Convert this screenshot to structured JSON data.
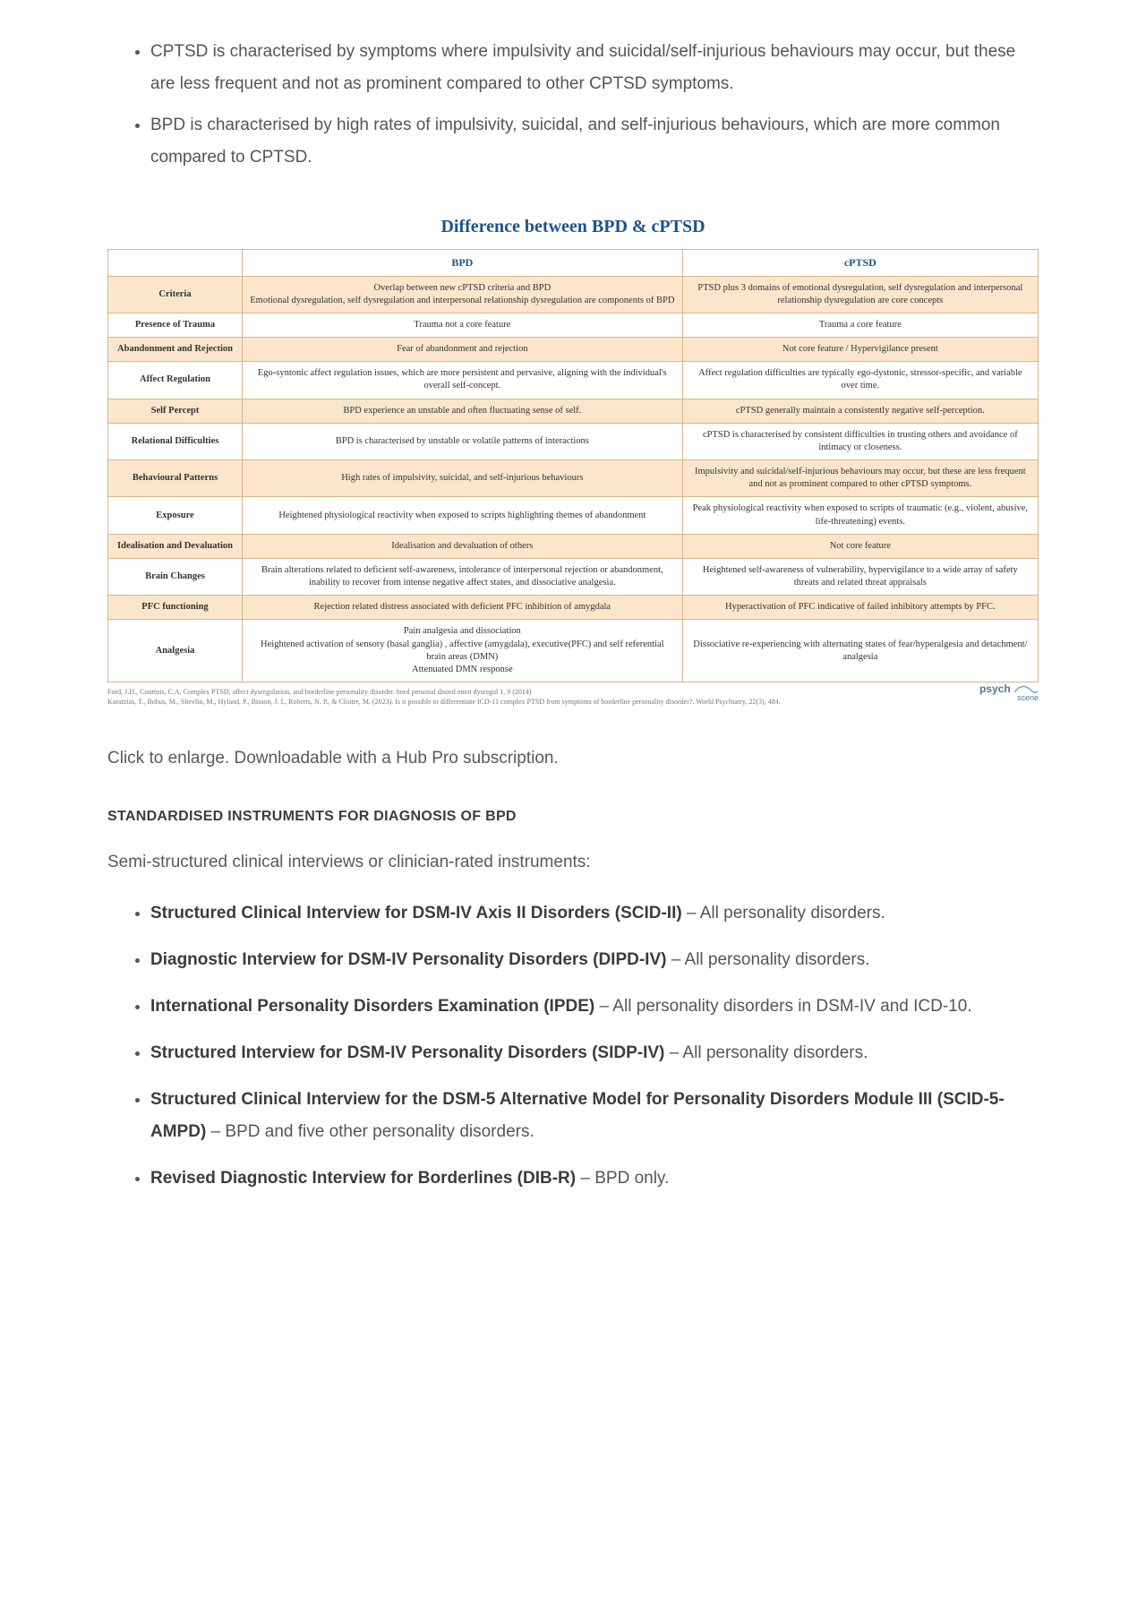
{
  "colors": {
    "accent_blue": "#1a5490",
    "table_border": "#d9b58a",
    "shade_bg": "#fbe6cc",
    "body_text": "#3c3c3c",
    "muted_text": "#595959"
  },
  "top_bullets": [
    "CPTSD is characterised by symptoms where impulsivity and suicidal/self-injurious behaviours may occur, but these are less frequent and not as prominent compared to other CPTSD symptoms.",
    "BPD is characterised by high rates of impulsivity, suicidal, and self-injurious behaviours, which are more common compared to CPTSD."
  ],
  "table": {
    "title": "Difference between BPD & cPTSD",
    "col_headers": [
      "BPD",
      "cPTSD"
    ],
    "rows": [
      {
        "label": "Criteria",
        "shade": true,
        "bpd": "Overlap between new cPTSD criteria and BPD\nEmotional dysregulation, self dysregulation and interpersonal relationship dysregulation are components of BPD",
        "cptsd": "PTSD plus 3 domains of emotional dysregulation, self dysregulation and interpersonal relationship dysregulation are core concepts"
      },
      {
        "label": "Presence of Trauma",
        "shade": false,
        "bpd": "Trauma not a core feature",
        "cptsd": "Trauma a core feature"
      },
      {
        "label": "Abandonment and Rejection",
        "shade": true,
        "bpd": "Fear of abandonment and rejection",
        "cptsd": "Not core feature / Hypervigilance present"
      },
      {
        "label": "Affect Regulation",
        "shade": false,
        "bpd": "Ego-syntonic affect regulation issues, which are more persistent and pervasive, aligning with the individual's overall self-concept.",
        "cptsd": "Affect regulation difficulties are typically ego-dystonic, stressor-specific, and variable over time."
      },
      {
        "label": "Self Percept",
        "shade": true,
        "bpd": "BPD experience an unstable and often fluctuating sense of self.",
        "cptsd": "cPTSD generally maintain a consistently negative self-perception."
      },
      {
        "label": "Relational Difficulties",
        "shade": false,
        "bpd": "BPD is characterised by unstable or volatile patterns of interactions",
        "cptsd": "cPTSD is characterised by consistent difficulties in trusting others and avoidance of intimacy or closeness."
      },
      {
        "label": "Behavioural Patterns",
        "shade": true,
        "bpd": "High rates of impulsivity, suicidal, and self-injurious behaviours",
        "cptsd": "Impulsivity and suicidal/self-injurious behaviours may occur, but these are less frequent and not as prominent compared to other cPTSD symptoms."
      },
      {
        "label": "Exposure",
        "shade": false,
        "bpd": "Heightened physiological reactivity when exposed to scripts highlighting themes of abandonment",
        "cptsd": "Peak physiological reactivity when exposed to scripts of traumatic (e.g., violent, abusive, life-threatening) events."
      },
      {
        "label": "Idealisation and Devaluation",
        "shade": true,
        "bpd": "Idealisation and devaluation of others",
        "cptsd": "Not core feature"
      },
      {
        "label": "Brain Changes",
        "shade": false,
        "bpd": "Brain alterations related to deficient self-awareness, intolerance of interpersonal rejection or abandonment, inability to recover from intense negative affect states, and dissociative analgesia.",
        "cptsd": "Heightened self-awareness of vulnerability, hypervigilance to a wide array of safety threats and related threat appraisals"
      },
      {
        "label": "PFC functioning",
        "shade": true,
        "bpd": "Rejection related distress associated with deficient PFC inhibition of amygdala",
        "cptsd": "Hyperactivation of PFC indicative of failed inhibitory attempts by PFC."
      },
      {
        "label": "Analgesia",
        "shade": false,
        "bpd": "Pain analgesia and dissociation\nHeightened activation of sensory (basal ganglia) , affective (amygdala), executive(PFC) and self referential brain areas (DMN)\nAttenuated DMN response",
        "cptsd": "Dissociative re-experiencing with alternating states of fear/hyperalgesia and detachment/ analgesia"
      }
    ],
    "citation1": "Ford, J.D., Courtois, C.A. Complex PTSD, affect dysregulation, and borderline personality disorder. bord personal disord emot dysregul 1, 9 (2014)",
    "citation2": "Karatzias, T., Bohus, M., Shevlin, M., Hyland, P., Bisson, J. I., Roberts, N. P., & Cloitre, M. (2023). Is it possible to differentiate ICD-11 complex PTSD from symptoms of borderline personality disorder?. World Psychiatry, 22(3), 484.",
    "logo_top": "psych",
    "logo_bottom": "scene"
  },
  "caption": "Click to enlarge. Downloadable with a Hub Pro subscription.",
  "section_heading": "STANDARDISED INSTRUMENTS FOR DIAGNOSIS OF BPD",
  "lede": "Semi-structured clinical interviews or clinician-rated instruments:",
  "instruments": [
    {
      "name": "Structured Clinical Interview for DSM-IV Axis II Disorders (SCID-II)",
      "desc": " – All personality disorders."
    },
    {
      "name": "Diagnostic Interview for DSM-IV Personality Disorders (DIPD-IV)",
      "desc": " – All personality disorders."
    },
    {
      "name": "International Personality Disorders Examination (IPDE)",
      "desc": " – All personality disorders in DSM-IV and ICD-10."
    },
    {
      "name": "Structured Interview for DSM-IV Personality Disorders (SIDP-IV)",
      "desc": " – All personality disorders."
    },
    {
      "name": "Structured Clinical Interview for the DSM-5 Alternative Model for Personality Disorders Module III (SCID-5-AMPD)",
      "desc": " – BPD and five other personality disorders."
    },
    {
      "name": "Revised Diagnostic Interview for Borderlines (DIB-R)",
      "desc": " – BPD only."
    }
  ]
}
